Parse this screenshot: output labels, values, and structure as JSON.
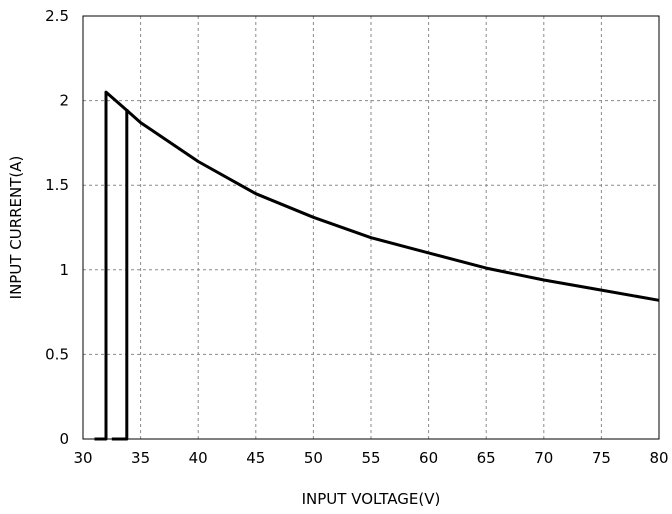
{
  "chart_data": {
    "type": "line",
    "title": "",
    "xlabel": "INPUT VOLTAGE(V)",
    "ylabel": "INPUT CURRENT(A)",
    "xlim": [
      30,
      80
    ],
    "ylim": [
      0,
      2.5
    ],
    "x_ticks": [
      30,
      35,
      40,
      45,
      50,
      55,
      60,
      65,
      70,
      75,
      80
    ],
    "y_ticks": [
      0,
      0.5,
      1,
      1.5,
      2,
      2.5
    ],
    "x_tick_labels": [
      "30",
      "35",
      "40",
      "45",
      "50",
      "55",
      "60",
      "65",
      "70",
      "75",
      "80"
    ],
    "y_tick_labels": [
      "0",
      "0.5",
      "1",
      "1.5",
      "2",
      "2.5"
    ],
    "grid": true,
    "grid_style": "dashed",
    "line_color": "#000000",
    "series": [
      {
        "x": [
          31,
          32,
          32,
          34,
          35,
          40,
          45,
          50,
          55,
          60,
          65,
          70,
          75,
          80
        ],
        "y": [
          0,
          0,
          2.05,
          1.93,
          1.87,
          1.64,
          1.45,
          1.31,
          1.19,
          1.1,
          1.01,
          0.94,
          0.88,
          0.82
        ]
      },
      {
        "x": [
          32.5,
          33.8,
          33.8
        ],
        "y": [
          0,
          0,
          1.95
        ]
      }
    ]
  }
}
